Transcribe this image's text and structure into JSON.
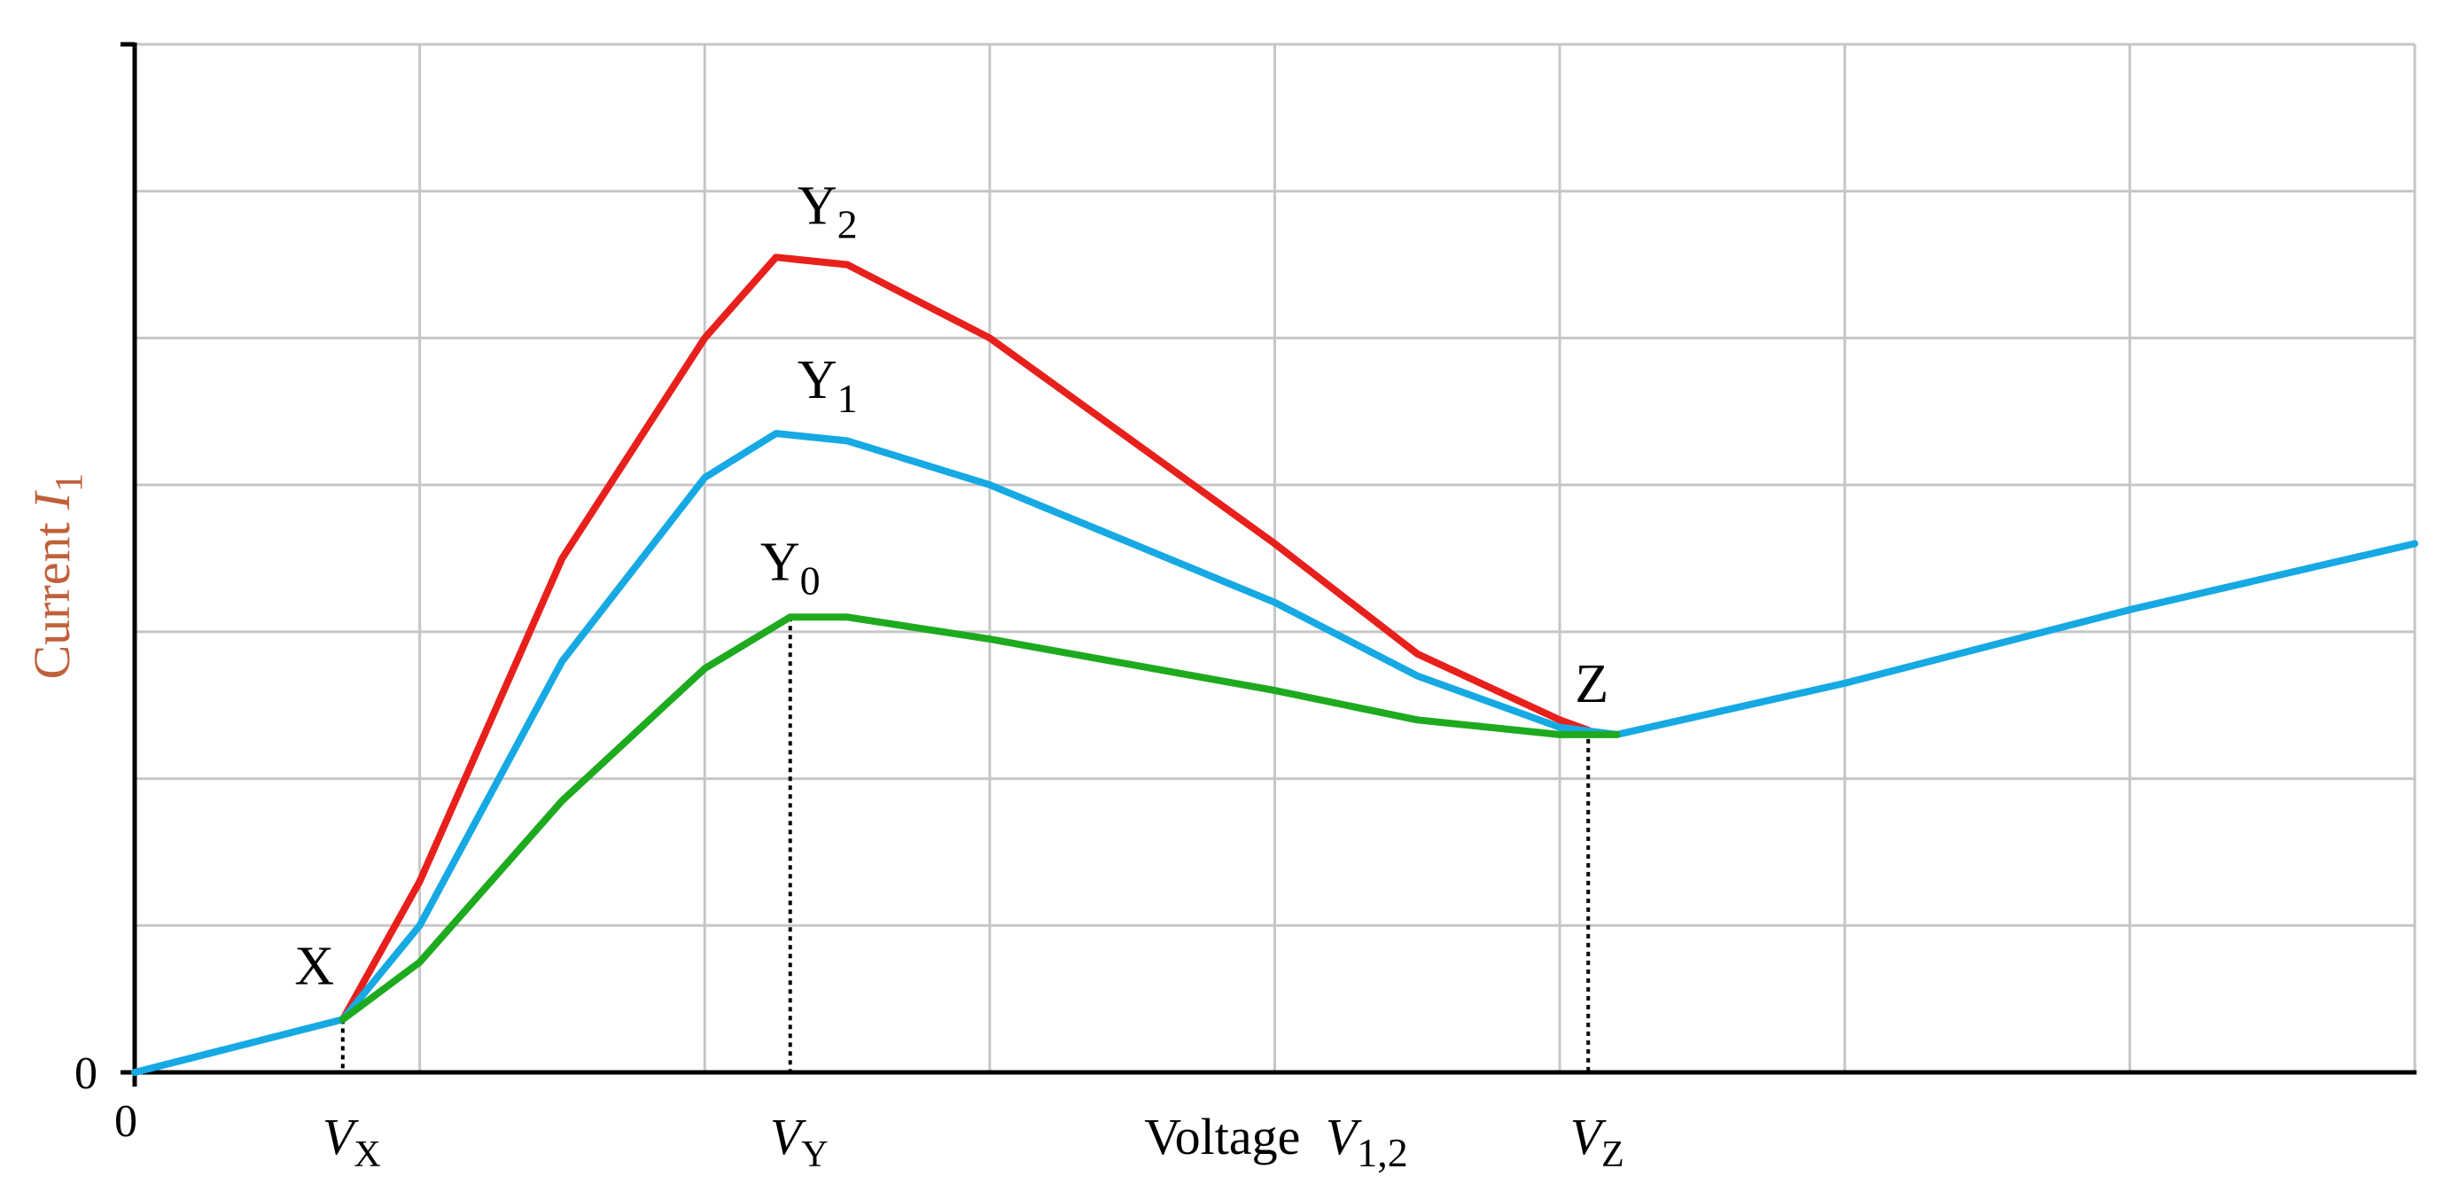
{
  "chart_data": {
    "type": "line",
    "xlabel": {
      "text": "Voltage ",
      "var": "V",
      "sub": "1,2"
    },
    "ylabel": {
      "text": "Current ",
      "var": "I",
      "sub": "1"
    },
    "origin_labels": {
      "x": "0",
      "y": "0"
    },
    "xlim": [
      0,
      8
    ],
    "ylim": [
      0,
      7
    ],
    "grid": true,
    "grid_x": [
      1,
      2,
      3,
      4,
      5,
      6,
      7,
      8
    ],
    "grid_y": [
      1,
      2,
      3,
      4,
      5,
      6,
      7
    ],
    "x_markers": [
      {
        "var": "V",
        "sub": "X",
        "x": 0.73,
        "y": 0.36
      },
      {
        "var": "V",
        "sub": "Y",
        "x": 2.3,
        "y": 3.1
      },
      {
        "var": "V",
        "sub": "Z",
        "x": 5.1,
        "y": 2.33
      }
    ],
    "series": [
      {
        "key": "red",
        "color": "#e8201c",
        "points": [
          [
            0.73,
            0.36
          ],
          [
            1.0,
            1.3
          ],
          [
            1.5,
            3.5
          ],
          [
            2.0,
            5.0
          ],
          [
            2.25,
            5.55
          ],
          [
            2.5,
            5.5
          ],
          [
            3.0,
            5.0
          ],
          [
            4.0,
            3.6
          ],
          [
            4.5,
            2.85
          ],
          [
            5.0,
            2.4
          ],
          [
            5.1,
            2.33
          ]
        ]
      },
      {
        "key": "blue",
        "color": "#16a9e3",
        "points": [
          [
            0,
            0
          ],
          [
            0.73,
            0.36
          ],
          [
            1.0,
            1.0
          ],
          [
            1.5,
            2.8
          ],
          [
            2.0,
            4.05
          ],
          [
            2.25,
            4.35
          ],
          [
            2.5,
            4.3
          ],
          [
            3.0,
            4.0
          ],
          [
            4.0,
            3.2
          ],
          [
            4.5,
            2.7
          ],
          [
            5.0,
            2.35
          ],
          [
            5.2,
            2.3
          ],
          [
            6.0,
            2.65
          ],
          [
            7.0,
            3.15
          ],
          [
            8.0,
            3.6
          ]
        ]
      },
      {
        "key": "green",
        "color": "#1eaa1e",
        "points": [
          [
            0.73,
            0.36
          ],
          [
            1.0,
            0.75
          ],
          [
            1.5,
            1.85
          ],
          [
            2.0,
            2.75
          ],
          [
            2.3,
            3.1
          ],
          [
            2.5,
            3.1
          ],
          [
            3.0,
            2.95
          ],
          [
            4.0,
            2.6
          ],
          [
            4.5,
            2.4
          ],
          [
            5.0,
            2.3
          ],
          [
            5.2,
            2.3
          ]
        ]
      }
    ],
    "point_labels": [
      {
        "base": "X",
        "sub": "",
        "x": 0.73,
        "y": 0.36
      },
      {
        "base": "Y",
        "sub": "2",
        "x": 2.3,
        "y": 5.55
      },
      {
        "base": "Y",
        "sub": "1",
        "x": 2.3,
        "y": 4.35
      },
      {
        "base": "Y",
        "sub": "0",
        "x": 2.3,
        "y": 3.1
      },
      {
        "base": "Z",
        "sub": "",
        "x": 5.1,
        "y": 2.33
      }
    ]
  }
}
